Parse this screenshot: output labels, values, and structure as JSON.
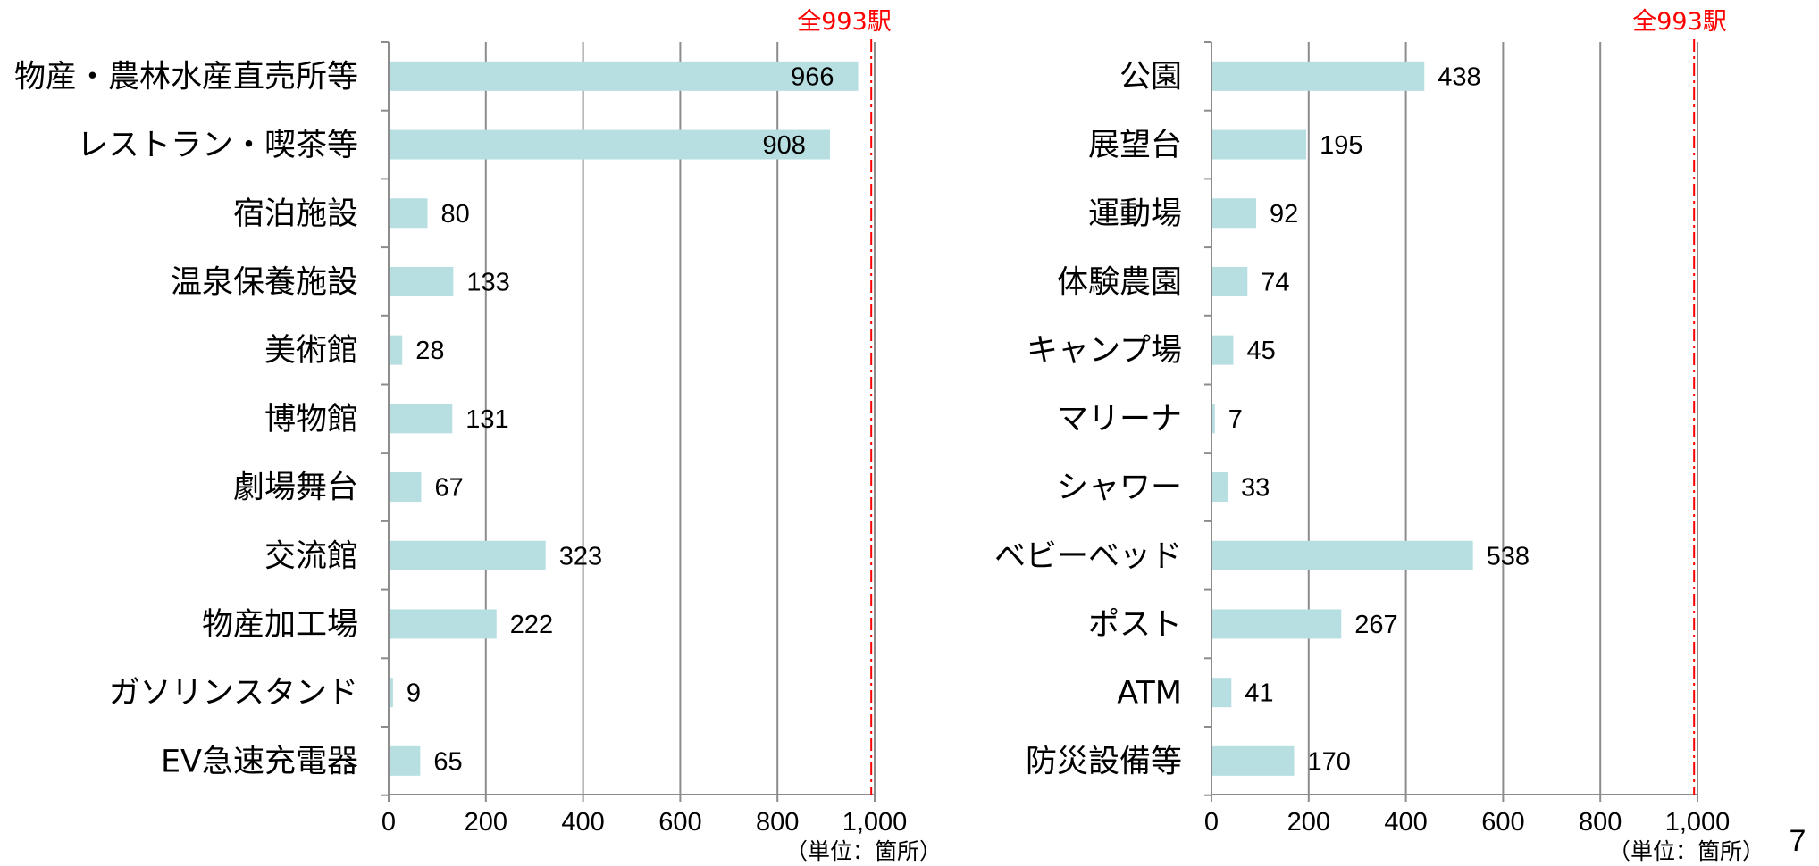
{
  "page_number": "7",
  "chart_data": [
    {
      "type": "bar",
      "orientation": "horizontal",
      "categories": [
        "物産・農林水産直売所等",
        "レストラン・喫茶等",
        "宿泊施設",
        "温泉保養施設",
        "美術館",
        "博物館",
        "劇場舞台",
        "交流館",
        "物産加工場",
        "ガソリンスタンド",
        "EV急速充電器"
      ],
      "values": [
        966,
        908,
        80,
        133,
        28,
        131,
        67,
        323,
        222,
        9,
        65
      ],
      "value_labels": [
        "966",
        "908",
        "80",
        "133",
        "28",
        "131",
        "67",
        "323",
        "222",
        "9",
        "65"
      ],
      "xlim": [
        0,
        1000
      ],
      "ticks": [
        0,
        200,
        400,
        600,
        800,
        1000
      ],
      "tick_labels": [
        "0",
        "200",
        "400",
        "600",
        "800",
        "1,000"
      ],
      "grid": true,
      "reference_line": {
        "value": 993,
        "label": "全993駅",
        "color": "#ff0000",
        "style": "dash-dot"
      },
      "unit_label": "（単位：箇所）",
      "bar_color": "#b7dfe2",
      "label_inside_for": [
        966,
        908
      ]
    },
    {
      "type": "bar",
      "orientation": "horizontal",
      "categories": [
        "公園",
        "展望台",
        "運動場",
        "体験農園",
        "キャンプ場",
        "マリーナ",
        "シャワー",
        "ベビーベッド",
        "ポスト",
        "ATM",
        "防災設備等"
      ],
      "values": [
        438,
        195,
        92,
        74,
        45,
        7,
        33,
        538,
        267,
        41,
        170
      ],
      "value_labels": [
        "438",
        "195",
        "92",
        "74",
        "45",
        "7",
        "33",
        "538",
        "267",
        "41",
        "170"
      ],
      "xlim": [
        0,
        1000
      ],
      "ticks": [
        0,
        200,
        400,
        600,
        800,
        1000
      ],
      "tick_labels": [
        "0",
        "200",
        "400",
        "600",
        "800",
        "1,000"
      ],
      "grid": true,
      "reference_line": {
        "value": 993,
        "label": "全993駅",
        "color": "#ff0000",
        "style": "dash-dot"
      },
      "unit_label": "（単位：箇所）",
      "bar_color": "#b7dfe2"
    }
  ]
}
